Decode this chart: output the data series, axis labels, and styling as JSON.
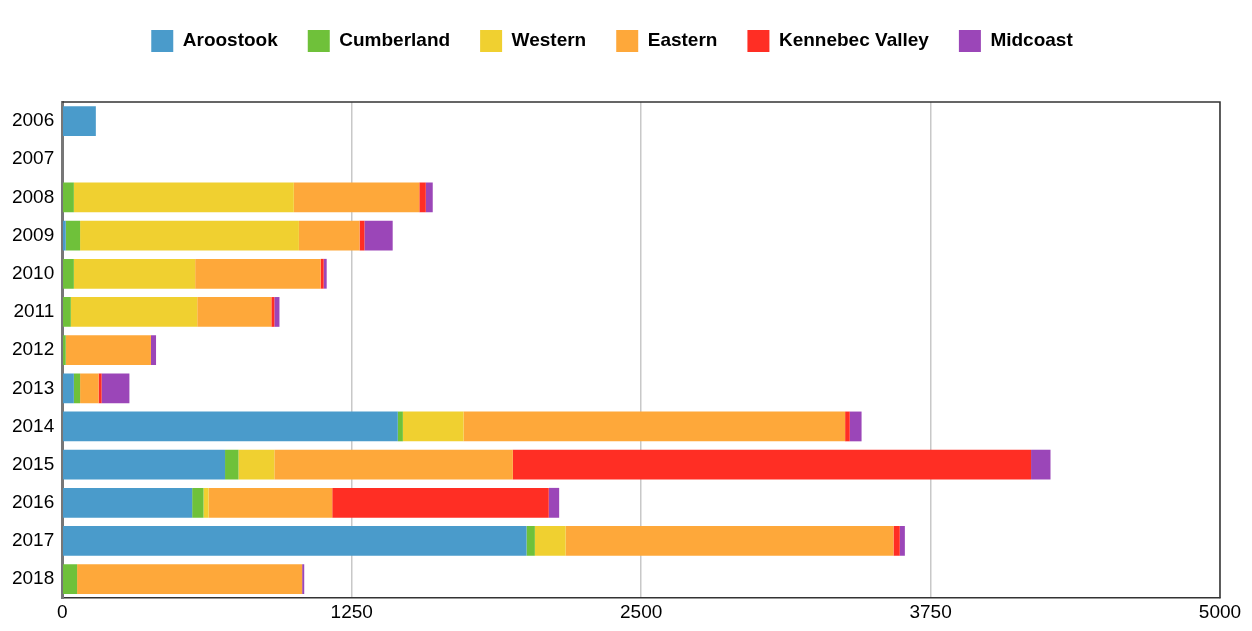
{
  "chart_data": {
    "type": "bar",
    "orientation": "horizontal",
    "stacked": true,
    "categories": [
      "2006",
      "2007",
      "2008",
      "2009",
      "2010",
      "2011",
      "2012",
      "2013",
      "2014",
      "2015",
      "2016",
      "2017",
      "2018"
    ],
    "series": [
      {
        "name": "Aroostook",
        "color": "#4a9bcb",
        "values": [
          145,
          0,
          0,
          15,
          0,
          0,
          0,
          50,
          1449,
          703,
          561,
          2005,
          0
        ]
      },
      {
        "name": "Cumberland",
        "color": "#6fc13a",
        "values": [
          0,
          0,
          50,
          62,
          50,
          37,
          15,
          27,
          22,
          58,
          49,
          36,
          64
        ]
      },
      {
        "name": "Western",
        "color": "#f0d030",
        "values": [
          0,
          0,
          950,
          945,
          524,
          546,
          0,
          0,
          262,
          155,
          22,
          133,
          0
        ]
      },
      {
        "name": "Eastern",
        "color": "#fea83a",
        "values": [
          0,
          0,
          542,
          262,
          542,
          320,
          368,
          80,
          1648,
          1030,
          534,
          1416,
          972
        ]
      },
      {
        "name": "Kennebec Valley",
        "color": "#ff2e24",
        "values": [
          0,
          0,
          28,
          21,
          13,
          13,
          0,
          13,
          20,
          2238,
          935,
          27,
          0
        ]
      },
      {
        "name": "Midcoast",
        "color": "#9b46b8",
        "values": [
          0,
          0,
          30,
          122,
          13,
          22,
          22,
          120,
          51,
          84,
          45,
          22,
          9
        ]
      }
    ],
    "xlim": [
      0,
      5000
    ],
    "xticks": [
      0,
      1250,
      2500,
      3750,
      5000
    ],
    "grid": "x",
    "legend": "top"
  }
}
